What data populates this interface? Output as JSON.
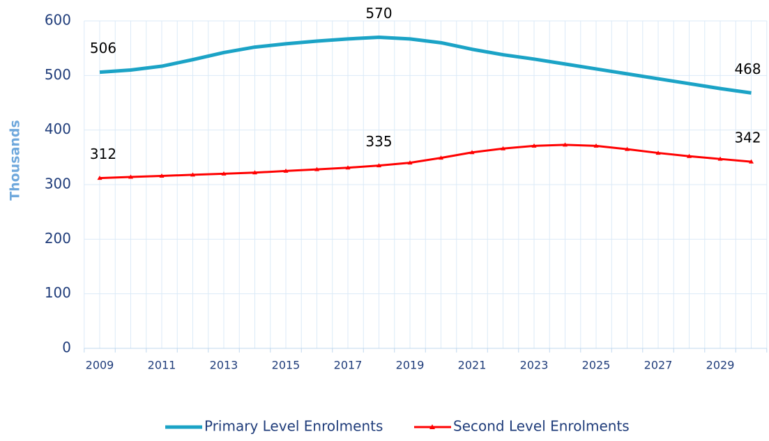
{
  "chart_data": {
    "type": "line",
    "ylabel": "Thousands",
    "categories": [
      "2009",
      null,
      "2011",
      null,
      "2013",
      null,
      "2015",
      null,
      "2017",
      null,
      "2019",
      null,
      "2021",
      null,
      "2023",
      null,
      "2025",
      null,
      "2027",
      null,
      "2029",
      null
    ],
    "series": [
      {
        "name": "Primary Level Enrolments",
        "color": "#1ba3c6",
        "values": [
          506,
          510,
          517,
          529,
          542,
          552,
          558,
          563,
          567,
          570,
          567,
          560,
          548,
          538,
          530,
          521,
          512,
          503,
          494,
          485,
          476,
          468
        ],
        "value_labels": [
          "506",
          null,
          null,
          null,
          null,
          null,
          null,
          null,
          null,
          "570",
          null,
          null,
          null,
          null,
          null,
          null,
          null,
          null,
          null,
          null,
          null,
          "468"
        ]
      },
      {
        "name": "Second Level Enrolments",
        "color": "#ff0000",
        "values": [
          312,
          314,
          316,
          318,
          320,
          322,
          325,
          328,
          331,
          335,
          340,
          349,
          359,
          366,
          371,
          373,
          371,
          365,
          358,
          352,
          347,
          342
        ],
        "value_labels": [
          "312",
          null,
          null,
          null,
          null,
          null,
          null,
          null,
          null,
          "335",
          null,
          null,
          null,
          null,
          null,
          null,
          null,
          null,
          null,
          null,
          null,
          "342"
        ]
      }
    ],
    "ylim": [
      0,
      600
    ],
    "yticks": [
      0,
      100,
      200,
      300,
      400,
      500,
      600
    ],
    "grid": true,
    "legend": "bottom"
  }
}
